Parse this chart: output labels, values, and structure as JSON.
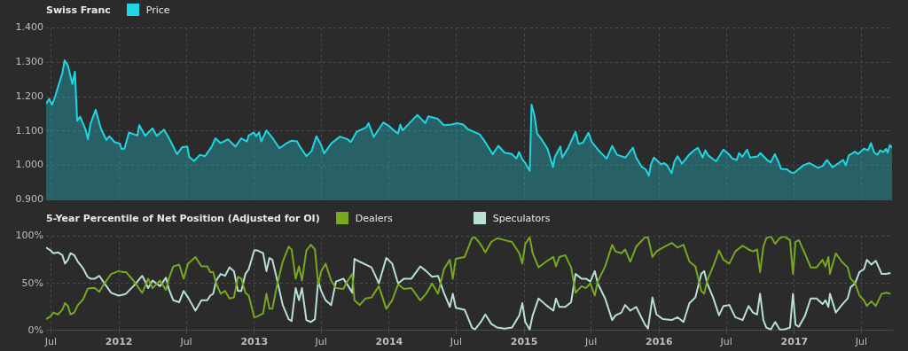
{
  "chart_data": [
    {
      "type": "area",
      "title": "Swiss Franc",
      "legend": "top left",
      "grid": true,
      "marker": "none",
      "tick_labels": "y",
      "xlim": [
        "2011-06-18",
        "2017-09-22"
      ],
      "xticks": [
        {
          "value": "2011-07",
          "label": null
        },
        {
          "value": "2012-01",
          "label": null
        },
        {
          "value": "2012-07",
          "label": null
        },
        {
          "value": "2013-01",
          "label": null
        },
        {
          "value": "2013-07",
          "label": null
        },
        {
          "value": "2014-01",
          "label": null
        },
        {
          "value": "2014-07",
          "label": null
        },
        {
          "value": "2015-01",
          "label": null
        },
        {
          "value": "2015-07",
          "label": null
        },
        {
          "value": "2016-01",
          "label": null
        },
        {
          "value": "2016-07",
          "label": null
        },
        {
          "value": "2017-01",
          "label": null
        },
        {
          "value": "2017-07",
          "label": null
        }
      ],
      "ylim": [
        0.9,
        1.4
      ],
      "yticks": [
        {
          "value": 0.9,
          "label": "0.900"
        },
        {
          "value": 1.0,
          "label": "1.000"
        },
        {
          "value": 1.1,
          "label": "1.100"
        },
        {
          "value": 1.2,
          "label": "1.200"
        },
        {
          "value": 1.3,
          "label": "1.300"
        },
        {
          "value": 1.4,
          "label": "1.400"
        }
      ],
      "x": [
        "2011-06-18",
        "2011-06-26",
        "2011-07-04",
        "2011-07-12",
        "2011-07-20",
        "2011-08-01",
        "2011-08-07",
        "2011-08-16",
        "2011-08-28",
        "2011-09-04",
        "2011-09-10",
        "2011-09-18",
        "2011-10-03",
        "2011-10-09",
        "2011-10-16",
        "2011-10-30",
        "2011-11-13",
        "2011-11-28",
        "2011-12-06",
        "2011-12-20",
        "2012-01-04",
        "2012-01-08",
        "2012-01-16",
        "2012-01-28",
        "2012-02-20",
        "2012-02-25",
        "2012-03-12",
        "2012-04-01",
        "2012-04-12",
        "2012-05-02",
        "2012-05-19",
        "2012-06-06",
        "2012-06-20",
        "2012-07-04",
        "2012-07-09",
        "2012-07-22",
        "2012-08-07",
        "2012-08-21",
        "2012-09-08",
        "2012-09-18",
        "2012-10-02",
        "2012-10-22",
        "2012-11-11",
        "2012-11-27",
        "2012-12-12",
        "2012-12-17",
        "2012-12-31",
        "2013-01-06",
        "2013-01-14",
        "2013-01-20",
        "2013-02-03",
        "2013-02-22",
        "2013-03-10",
        "2013-03-27",
        "2013-04-12",
        "2013-04-27",
        "2013-05-02",
        "2013-05-22",
        "2013-06-05",
        "2013-06-18",
        "2013-07-01",
        "2013-07-09",
        "2013-07-29",
        "2013-08-21",
        "2013-09-11",
        "2013-09-19",
        "2013-10-05",
        "2013-10-31",
        "2013-11-06",
        "2013-11-20",
        "2013-12-16",
        "2013-12-31",
        "2014-01-13",
        "2014-01-25",
        "2014-01-31",
        "2014-02-06",
        "2014-03-18",
        "2014-03-26",
        "2014-04-09",
        "2014-04-17",
        "2014-05-12",
        "2014-05-29",
        "2014-06-18",
        "2014-07-04",
        "2014-07-20",
        "2014-08-01",
        "2014-09-02",
        "2014-09-14",
        "2014-10-08",
        "2014-10-23",
        "2014-11-09",
        "2014-11-29",
        "2014-12-11",
        "2014-12-18",
        "2014-12-27",
        "2015-01-04",
        "2015-01-16",
        "2015-01-21",
        "2015-01-29",
        "2015-02-05",
        "2015-02-17",
        "2015-03-05",
        "2015-03-20",
        "2015-03-25",
        "2015-04-09",
        "2015-04-14",
        "2015-04-30",
        "2015-05-20",
        "2015-05-28",
        "2015-06-09",
        "2015-06-24",
        "2015-07-03",
        "2015-07-23",
        "2015-08-12",
        "2015-08-27",
        "2015-09-09",
        "2015-10-02",
        "2015-10-22",
        "2015-10-31",
        "2015-11-15",
        "2015-11-26",
        "2015-12-04",
        "2015-12-10",
        "2015-12-18",
        "2016-01-07",
        "2016-01-15",
        "2016-01-23",
        "2016-01-30",
        "2016-02-04",
        "2016-02-11",
        "2016-02-20",
        "2016-03-03",
        "2016-03-22",
        "2016-04-07",
        "2016-04-15",
        "2016-04-28",
        "2016-05-05",
        "2016-05-13",
        "2016-06-03",
        "2016-06-23",
        "2016-07-09",
        "2016-07-17",
        "2016-07-29",
        "2016-08-04",
        "2016-08-13",
        "2016-08-26",
        "2016-09-03",
        "2016-09-23",
        "2016-10-01",
        "2016-10-21",
        "2016-10-29",
        "2016-11-09",
        "2016-11-18",
        "2016-11-26",
        "2016-12-11",
        "2016-12-24",
        "2017-01-01",
        "2017-01-25",
        "2017-02-10",
        "2017-03-06",
        "2017-03-18",
        "2017-03-30",
        "2017-04-14",
        "2017-05-01",
        "2017-05-13",
        "2017-05-20",
        "2017-05-28",
        "2017-06-14",
        "2017-06-22",
        "2017-07-08",
        "2017-07-19",
        "2017-07-27",
        "2017-08-05",
        "2017-08-13",
        "2017-08-21",
        "2017-08-29",
        "2017-09-06",
        "2017-09-10",
        "2017-09-16",
        "2017-09-22"
      ],
      "series": [
        {
          "name": "Price",
          "color": "#1fd6e4",
          "values": [
            1.179,
            1.194,
            1.177,
            1.199,
            1.228,
            1.269,
            1.306,
            1.291,
            1.237,
            1.273,
            1.13,
            1.142,
            1.104,
            1.076,
            1.121,
            1.162,
            1.108,
            1.074,
            1.085,
            1.068,
            1.063,
            1.048,
            1.049,
            1.096,
            1.087,
            1.117,
            1.086,
            1.108,
            1.086,
            1.104,
            1.072,
            1.033,
            1.053,
            1.055,
            1.025,
            1.013,
            1.031,
            1.027,
            1.055,
            1.079,
            1.065,
            1.076,
            1.055,
            1.079,
            1.07,
            1.087,
            1.096,
            1.085,
            1.096,
            1.07,
            1.102,
            1.076,
            1.05,
            1.063,
            1.072,
            1.07,
            1.059,
            1.027,
            1.042,
            1.085,
            1.059,
            1.035,
            1.065,
            1.084,
            1.076,
            1.068,
            1.098,
            1.111,
            1.123,
            1.083,
            1.125,
            1.115,
            1.102,
            1.093,
            1.119,
            1.102,
            1.147,
            1.138,
            1.123,
            1.143,
            1.136,
            1.117,
            1.119,
            1.123,
            1.119,
            1.106,
            1.091,
            1.074,
            1.033,
            1.057,
            1.037,
            1.033,
            1.02,
            1.039,
            1.018,
            1.007,
            0.984,
            1.177,
            1.145,
            1.093,
            1.076,
            1.049,
            0.995,
            1.025,
            1.055,
            1.023,
            1.051,
            1.098,
            1.063,
            1.066,
            1.095,
            1.068,
            1.042,
            1.02,
            1.057,
            1.031,
            1.023,
            1.052,
            1.023,
            0.996,
            0.988,
            0.97,
            1.003,
            1.023,
            1.003,
            1.007,
            1.0,
            0.986,
            0.977,
            1.01,
            1.027,
            1.005,
            1.031,
            1.046,
            1.051,
            1.023,
            1.044,
            1.029,
            1.012,
            1.046,
            1.031,
            1.02,
            1.016,
            1.036,
            1.025,
            1.046,
            1.023,
            1.026,
            1.036,
            1.014,
            1.009,
            1.033,
            1.012,
            0.99,
            0.989,
            0.979,
            0.979,
            1.0,
            1.007,
            0.993,
            0.998,
            1.016,
            0.995,
            1.007,
            1.016,
            1.0,
            1.029,
            1.04,
            1.033,
            1.049,
            1.044,
            1.065,
            1.037,
            1.031,
            1.044,
            1.039,
            1.048,
            1.037,
            1.059,
            1.052
          ]
        }
      ]
    },
    {
      "type": "line",
      "title": "5-Year Percentile of Net Position (Adjusted for OI)",
      "legend": "top left",
      "grid": true,
      "marker": "none",
      "xlim": [
        "2011-06-18",
        "2017-09-22"
      ],
      "xticks": [
        {
          "value": "2011-07",
          "label": "Jul"
        },
        {
          "value": "2012-01",
          "label": "2012"
        },
        {
          "value": "2012-07",
          "label": "Jul"
        },
        {
          "value": "2013-01",
          "label": "2013"
        },
        {
          "value": "2013-07",
          "label": "Jul"
        },
        {
          "value": "2014-01",
          "label": "2014"
        },
        {
          "value": "2014-07",
          "label": "Jul"
        },
        {
          "value": "2015-01",
          "label": "2015"
        },
        {
          "value": "2015-07",
          "label": "Jul"
        },
        {
          "value": "2016-01",
          "label": "2016"
        },
        {
          "value": "2016-07",
          "label": "Jul"
        },
        {
          "value": "2017-01",
          "label": "2017"
        },
        {
          "value": "2017-07",
          "label": "Jul"
        }
      ],
      "ylim": [
        0,
        100
      ],
      "yticks": [
        {
          "value": 0,
          "label": "0%"
        },
        {
          "value": 50,
          "label": "50%"
        },
        {
          "value": 100,
          "label": "100%"
        }
      ],
      "x": [
        "2011-06-18",
        "2011-06-30",
        "2011-07-08",
        "2011-07-20",
        "2011-08-01",
        "2011-08-08",
        "2011-08-16",
        "2011-08-23",
        "2011-09-02",
        "2011-09-12",
        "2011-09-26",
        "2011-10-08",
        "2011-10-16",
        "2011-10-28",
        "2011-11-09",
        "2011-11-21",
        "2011-12-11",
        "2011-12-31",
        "2012-01-12",
        "2012-01-20",
        "2012-02-09",
        "2012-03-04",
        "2012-03-12",
        "2012-03-20",
        "2012-04-01",
        "2012-04-21",
        "2012-05-07",
        "2012-05-15",
        "2012-05-27",
        "2012-06-12",
        "2012-06-24",
        "2012-07-06",
        "2012-07-26",
        "2012-08-11",
        "2012-08-27",
        "2012-09-04",
        "2012-09-12",
        "2012-09-20",
        "2012-10-02",
        "2012-10-14",
        "2012-10-26",
        "2012-11-07",
        "2012-11-18",
        "2012-11-27",
        "2012-12-08",
        "2012-12-17",
        "2013-01-01",
        "2013-01-10",
        "2013-01-25",
        "2013-02-03",
        "2013-02-11",
        "2013-02-19",
        "2013-03-03",
        "2013-03-19",
        "2013-04-04",
        "2013-04-12",
        "2013-04-23",
        "2013-05-02",
        "2013-05-10",
        "2013-05-22",
        "2013-06-03",
        "2013-06-14",
        "2013-06-23",
        "2013-07-01",
        "2013-07-13",
        "2013-07-28",
        "2013-08-10",
        "2013-08-30",
        "2013-09-11",
        "2013-09-23",
        "2013-09-29",
        "2013-10-13",
        "2013-10-29",
        "2013-11-14",
        "2013-12-04",
        "2013-12-24",
        "2014-01-09",
        "2014-01-25",
        "2014-02-10",
        "2014-03-02",
        "2014-03-26",
        "2014-04-11",
        "2014-04-27",
        "2014-05-13",
        "2014-05-29",
        "2014-06-14",
        "2014-06-22",
        "2014-06-30",
        "2014-07-24",
        "2014-08-13",
        "2014-08-21",
        "2014-09-06",
        "2014-09-18",
        "2014-10-04",
        "2014-10-20",
        "2014-11-09",
        "2014-11-29",
        "2014-12-19",
        "2014-12-27",
        "2015-01-04",
        "2015-01-16",
        "2015-01-24",
        "2015-02-09",
        "2015-03-01",
        "2015-03-21",
        "2015-03-28",
        "2015-04-06",
        "2015-04-22",
        "2015-05-08",
        "2015-05-20",
        "2015-06-05",
        "2015-06-17",
        "2015-06-29",
        "2015-07-11",
        "2015-07-19",
        "2015-08-08",
        "2015-08-27",
        "2015-09-05",
        "2015-09-21",
        "2015-10-01",
        "2015-10-15",
        "2015-10-31",
        "2015-11-24",
        "2015-12-02",
        "2015-12-14",
        "2015-12-25",
        "2016-01-11",
        "2016-02-04",
        "2016-02-20",
        "2016-03-07",
        "2016-03-23",
        "2016-04-08",
        "2016-04-24",
        "2016-05-02",
        "2016-05-10",
        "2016-05-26",
        "2016-06-11",
        "2016-06-23",
        "2016-07-09",
        "2016-07-25",
        "2016-08-14",
        "2016-08-30",
        "2016-09-11",
        "2016-09-22",
        "2016-09-30",
        "2016-10-09",
        "2016-10-17",
        "2016-10-29",
        "2016-11-10",
        "2016-11-22",
        "2016-12-04",
        "2016-12-20",
        "2016-12-28",
        "2017-01-04",
        "2017-01-13",
        "2017-01-29",
        "2017-02-14",
        "2017-03-02",
        "2017-03-18",
        "2017-03-26",
        "2017-04-03",
        "2017-04-07",
        "2017-04-23",
        "2017-05-09",
        "2017-05-25",
        "2017-06-02",
        "2017-06-14",
        "2017-06-26",
        "2017-07-08",
        "2017-07-16",
        "2017-07-28",
        "2017-08-09",
        "2017-08-25",
        "2017-09-06",
        "2017-09-18"
      ],
      "series": [
        {
          "name": "Dealers",
          "color": "#76a820",
          "values": [
            12,
            15,
            19,
            17,
            22,
            29,
            26,
            17,
            19,
            27,
            33,
            44,
            45,
            45,
            41,
            49,
            60,
            63,
            62,
            62,
            53,
            40,
            47,
            55,
            45,
            53,
            43,
            55,
            68,
            70,
            55,
            71,
            78,
            68,
            68,
            62,
            62,
            50,
            39,
            42,
            34,
            35,
            57,
            55,
            40,
            37,
            14,
            15,
            18,
            39,
            23,
            23,
            47,
            73,
            89,
            86,
            55,
            68,
            53,
            85,
            91,
            86,
            49,
            63,
            71,
            53,
            45,
            44,
            53,
            60,
            32,
            27,
            34,
            35,
            47,
            23,
            32,
            49,
            44,
            45,
            32,
            39,
            50,
            39,
            65,
            75,
            55,
            76,
            78,
            98,
            99,
            91,
            83,
            94,
            98,
            96,
            94,
            82,
            71,
            92,
            99,
            82,
            67,
            73,
            78,
            68,
            78,
            80,
            67,
            40,
            47,
            45,
            50,
            37,
            52,
            68,
            91,
            84,
            82,
            86,
            73,
            89,
            99,
            99,
            78,
            84,
            88,
            93,
            88,
            91,
            73,
            68,
            42,
            39,
            53,
            68,
            85,
            75,
            71,
            84,
            90,
            86,
            84,
            86,
            62,
            89,
            98,
            100,
            92,
            98,
            100,
            96,
            60,
            94,
            96,
            82,
            67,
            67,
            75,
            68,
            78,
            60,
            82,
            73,
            67,
            55,
            50,
            37,
            32,
            26,
            31,
            26,
            39,
            40,
            39
          ]
        },
        {
          "name": "Speculators",
          "color": "#b8e0d6",
          "values": [
            88,
            85,
            82,
            83,
            80,
            71,
            75,
            82,
            80,
            73,
            66,
            57,
            55,
            55,
            58,
            51,
            40,
            37,
            38,
            39,
            47,
            58,
            52,
            45,
            53,
            47,
            56,
            44,
            32,
            30,
            42,
            35,
            21,
            32,
            32,
            37,
            39,
            53,
            60,
            58,
            67,
            63,
            42,
            42,
            60,
            65,
            85,
            85,
            82,
            63,
            77,
            75,
            55,
            27,
            12,
            10,
            45,
            32,
            45,
            11,
            9,
            12,
            53,
            42,
            32,
            27,
            52,
            55,
            48,
            40,
            76,
            73,
            70,
            67,
            50,
            77,
            71,
            50,
            55,
            55,
            68,
            63,
            57,
            58,
            40,
            25,
            39,
            24,
            22,
            3,
            1,
            9,
            17,
            7,
            3,
            2,
            3,
            16,
            29,
            9,
            1,
            16,
            34,
            27,
            21,
            34,
            25,
            25,
            30,
            60,
            55,
            55,
            52,
            63,
            50,
            34,
            11,
            16,
            19,
            27,
            21,
            25,
            6,
            2,
            35,
            17,
            12,
            11,
            14,
            9,
            29,
            35,
            60,
            63,
            50,
            35,
            16,
            26,
            27,
            14,
            11,
            26,
            19,
            17,
            39,
            11,
            3,
            1,
            9,
            1,
            1,
            3,
            39,
            6,
            4,
            15,
            34,
            34,
            28,
            32,
            25,
            39,
            19,
            27,
            34,
            46,
            50,
            62,
            65,
            75,
            70,
            74,
            60,
            60,
            61
          ]
        }
      ]
    }
  ]
}
